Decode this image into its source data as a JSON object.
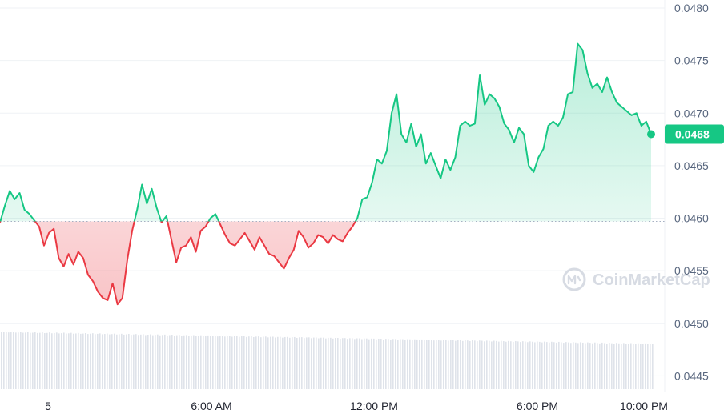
{
  "chart_data": {
    "type": "line",
    "x_ticks": [
      "5",
      "6:00 AM",
      "12:00 PM",
      "6:00 PM",
      "10:00 PM"
    ],
    "y_ticks": [
      "0.0480",
      "0.0475",
      "0.0470",
      "0.0465",
      "0.0460",
      "0.0455",
      "0.0450",
      "0.0445"
    ],
    "ylim": [
      0.04445,
      0.048
    ],
    "baseline": 0.04597,
    "current_price": 0.0468,
    "current_price_label": "0.0468",
    "colors": {
      "up": "#16c784",
      "down": "#ea3943",
      "axis_text": "#58667e",
      "grid": "#eff2f5"
    },
    "series": [
      {
        "values": [
          0.04596,
          0.04612,
          0.04626,
          0.04618,
          0.04624,
          0.04608,
          0.04604,
          0.04598,
          0.04592,
          0.04574,
          0.04586,
          0.0459,
          0.04562,
          0.04554,
          0.04566,
          0.04556,
          0.04568,
          0.04562,
          0.04546,
          0.0454,
          0.0453,
          0.04524,
          0.04522,
          0.04538,
          0.04518,
          0.04524,
          0.0456,
          0.04588,
          0.04608,
          0.04632,
          0.04614,
          0.04628,
          0.0461,
          0.04596,
          0.04602,
          0.0458,
          0.04558,
          0.04572,
          0.04574,
          0.04582,
          0.04568,
          0.04588,
          0.04592,
          0.046,
          0.04604,
          0.04594,
          0.04584,
          0.04576,
          0.04574,
          0.0458,
          0.04586,
          0.04578,
          0.0457,
          0.04582,
          0.04574,
          0.04566,
          0.04564,
          0.04558,
          0.04552,
          0.04562,
          0.0457,
          0.04588,
          0.04582,
          0.04572,
          0.04576,
          0.04584,
          0.04582,
          0.04576,
          0.04584,
          0.0458,
          0.04578,
          0.04586,
          0.04592,
          0.046,
          0.04618,
          0.0462,
          0.04634,
          0.04656,
          0.04652,
          0.04664,
          0.047,
          0.04718,
          0.0468,
          0.04672,
          0.0469,
          0.04668,
          0.0468,
          0.04652,
          0.04662,
          0.0465,
          0.04638,
          0.04656,
          0.04646,
          0.04658,
          0.04688,
          0.04692,
          0.04688,
          0.0469,
          0.04736,
          0.04708,
          0.04718,
          0.04714,
          0.04706,
          0.0469,
          0.04684,
          0.04672,
          0.04686,
          0.0468,
          0.0465,
          0.04644,
          0.04658,
          0.04666,
          0.04688,
          0.04692,
          0.04688,
          0.04696,
          0.04718,
          0.0472,
          0.04766,
          0.0476,
          0.04738,
          0.04724,
          0.04728,
          0.0472,
          0.04734,
          0.0472,
          0.0471,
          0.04706,
          0.04702,
          0.04698,
          0.047,
          0.04688,
          0.04692,
          0.0468
        ]
      }
    ]
  },
  "price_tag": "0.0468",
  "watermark": "CoinMarketCap"
}
